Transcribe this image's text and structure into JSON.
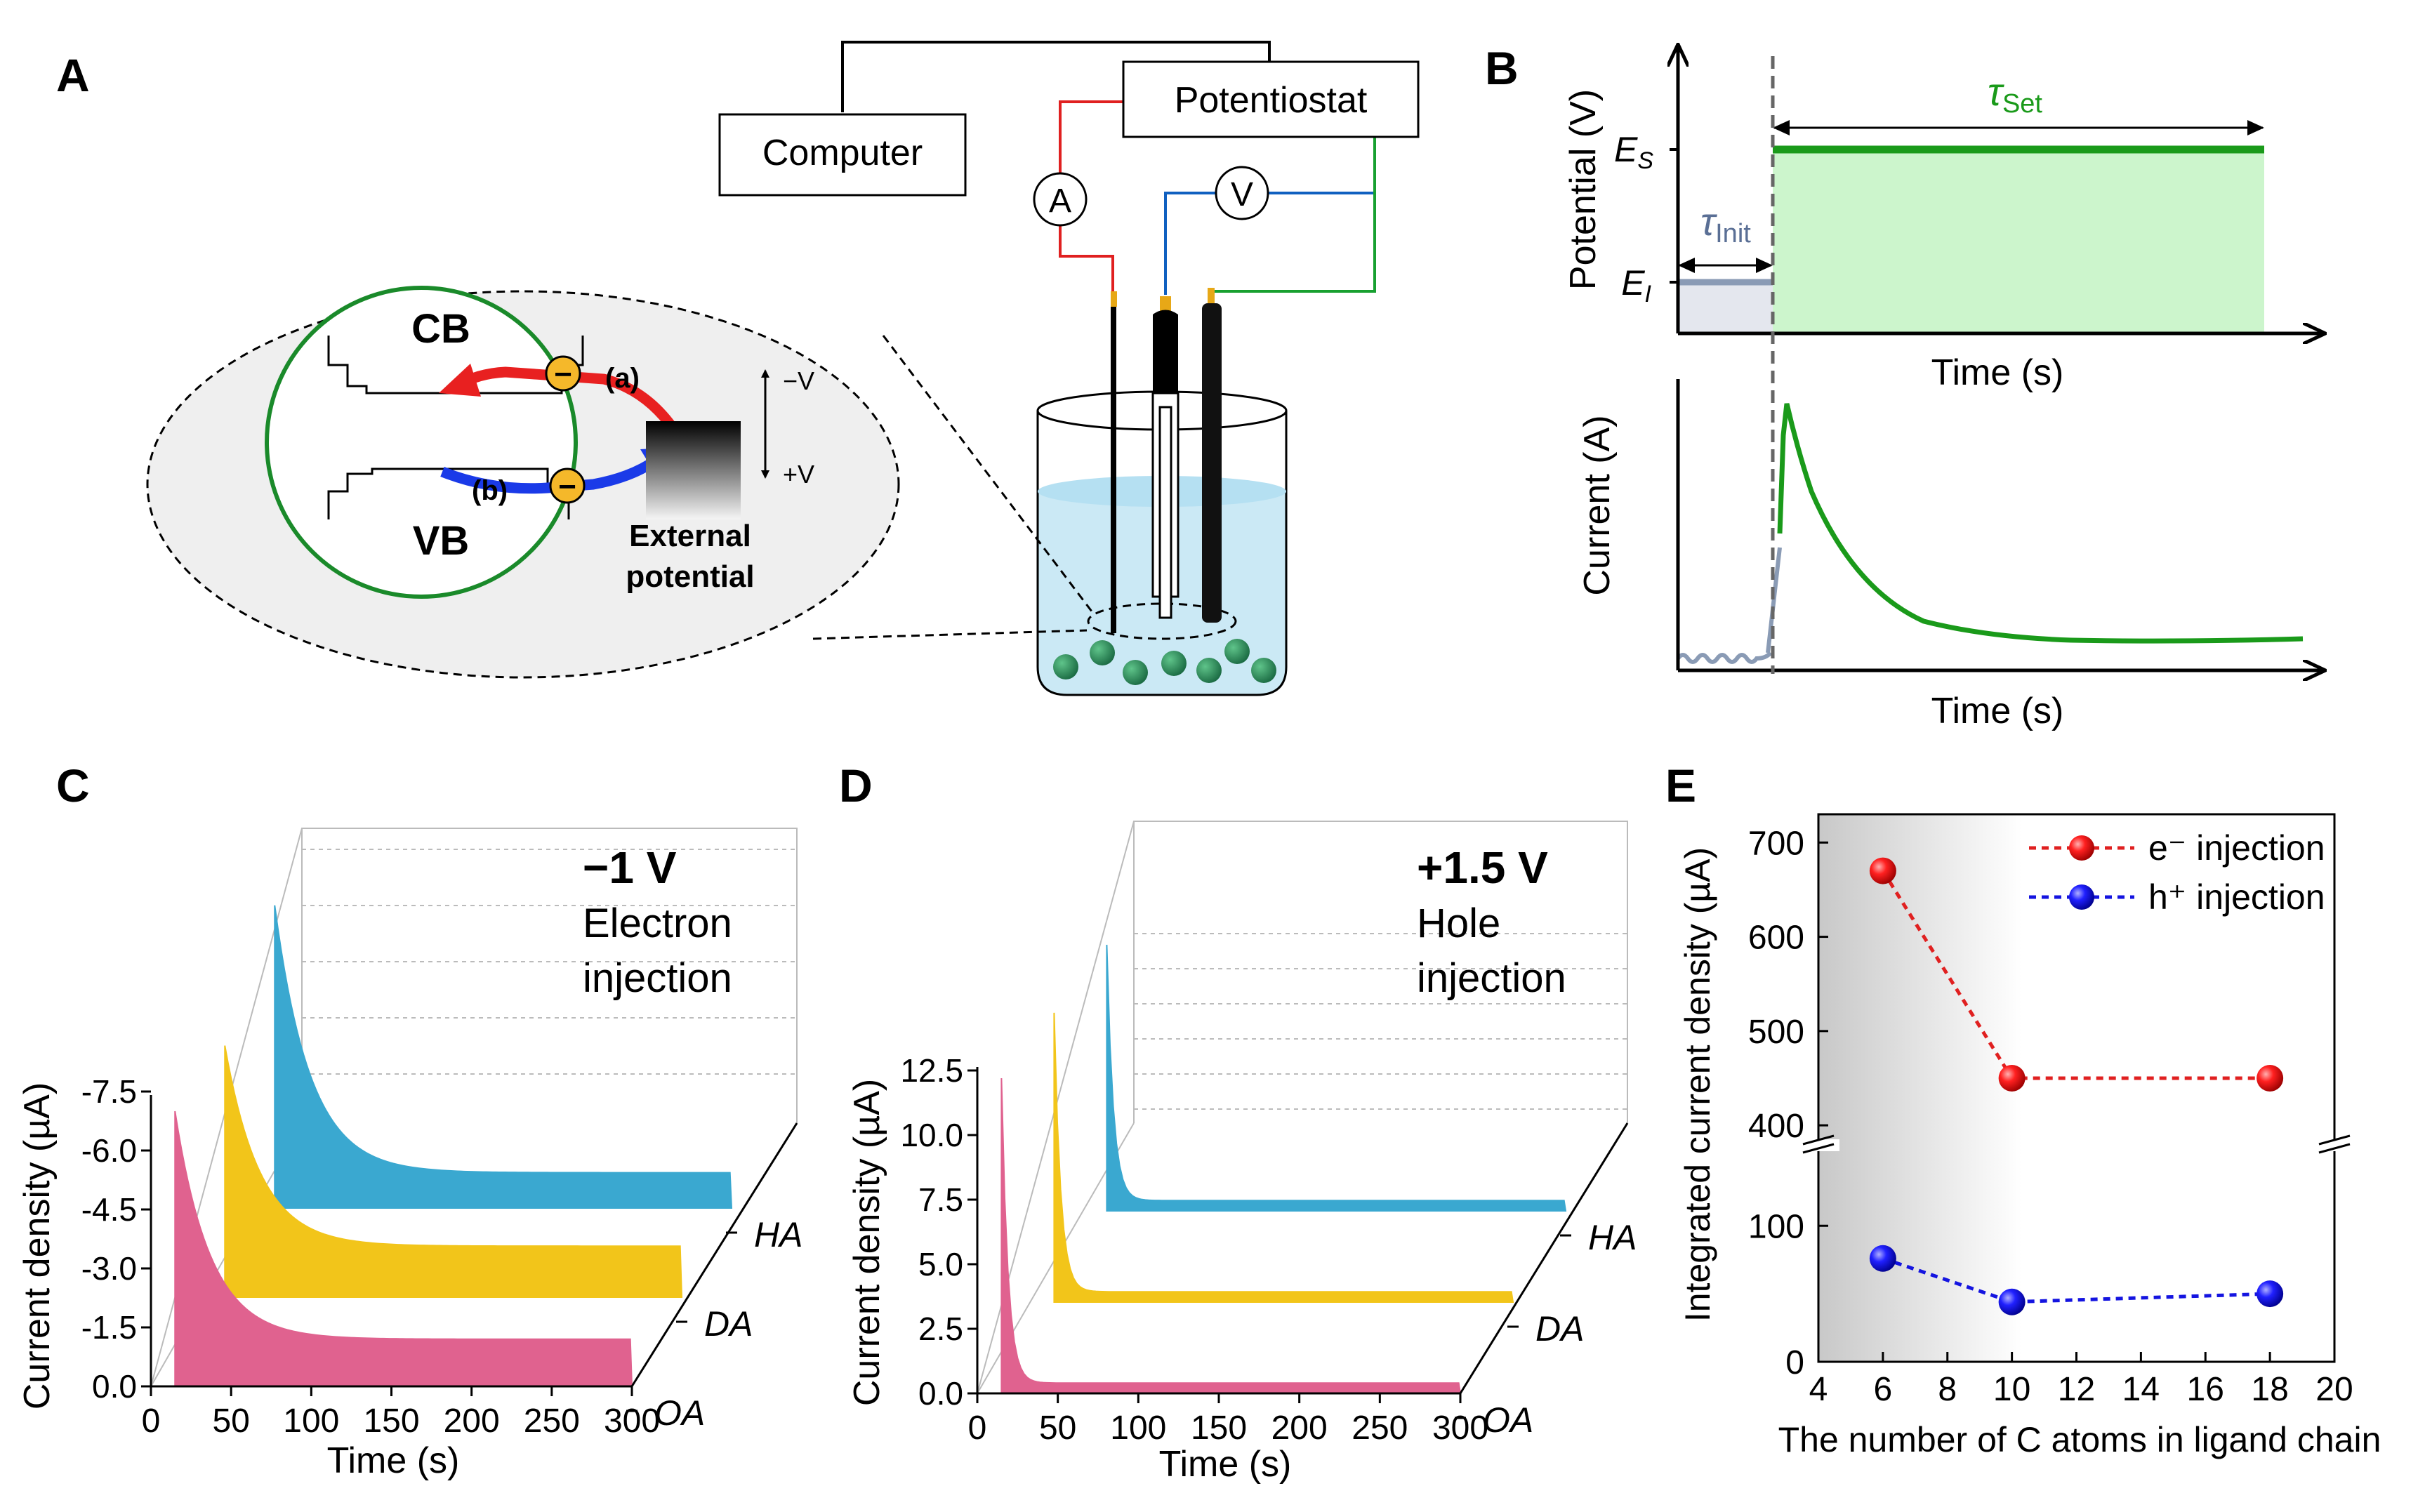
{
  "panel_labels": {
    "a": "A",
    "b": "B",
    "c": "C",
    "d": "D",
    "e": "E"
  },
  "setup": {
    "computer": "Computer",
    "potentiostat": "Potentiostat",
    "ammeter": "A",
    "voltmeter": "V",
    "cb": "CB",
    "vb": "VB",
    "path_a": "(a)",
    "path_b": "(b)",
    "minus_v": "−V",
    "plus_v": "+V",
    "ext1": "External",
    "ext2": "potential",
    "charge": "−"
  },
  "schematic": {
    "potential_ylabel": "Potential (V)",
    "current_ylabel": "Current (A)",
    "xlabel_top": "Time (s)",
    "xlabel_bottom": "Time (s)",
    "es": "E",
    "es_sub": "S",
    "ei": "E",
    "ei_sub": "I",
    "tau": "τ",
    "tau_init_sub": "Init",
    "tau_set_sub": "Set",
    "colors": {
      "green": "#1a9a1a",
      "fill_green": "#ccf5cc",
      "gray": "#8a9bb5",
      "fill_gray": "#e4e7ee"
    }
  },
  "chart_data": [
    {
      "panel": "C",
      "type": "area",
      "title_line1": "−1 V",
      "title_line2": "Electron",
      "title_line3": "injection",
      "xlabel": "Time (s)",
      "ylabel": "Current density (µA)",
      "xlim": [
        0,
        300
      ],
      "x_ticks": [
        "0",
        "50",
        "100",
        "150",
        "200",
        "250",
        "300"
      ],
      "y_ticks": [
        "0.0",
        "-1.5",
        "-3.0",
        "-4.5",
        "-6.0",
        "-7.5"
      ],
      "series": [
        {
          "name": "OA",
          "color": "#e0628f",
          "peak": -7.0,
          "tail": -1.2
        },
        {
          "name": "DA",
          "color": "#f2c51a",
          "peak": -6.4,
          "tail": -1.3
        },
        {
          "name": "HA",
          "color": "#3aa8d0",
          "peak": -7.7,
          "tail": -0.9
        }
      ]
    },
    {
      "panel": "D",
      "type": "area",
      "title_line1": "+1.5 V",
      "title_line2": "Hole",
      "title_line3": "injection",
      "xlabel": "Time (s)",
      "ylabel": "Current density (µA)",
      "xlim": [
        0,
        300
      ],
      "x_ticks": [
        "0",
        "50",
        "100",
        "150",
        "200",
        "250",
        "300"
      ],
      "y_ticks": [
        "0.0",
        "2.5",
        "5.0",
        "7.5",
        "10.0",
        "12.5"
      ],
      "series": [
        {
          "name": "OA",
          "color": "#e0628f",
          "peak": 12.2,
          "tail": 0.4
        },
        {
          "name": "DA",
          "color": "#f2c51a",
          "peak": 11.2,
          "tail": 0.4
        },
        {
          "name": "HA",
          "color": "#3aa8d0",
          "peak": 10.3,
          "tail": 0.4
        }
      ]
    },
    {
      "panel": "E",
      "type": "scatter",
      "xlabel": "The number of C atoms in ligand chain",
      "ylabel": "Integrated current density (µA)",
      "xlim": [
        4,
        20
      ],
      "x_ticks": [
        "4",
        "6",
        "8",
        "10",
        "12",
        "14",
        "16",
        "18",
        "20"
      ],
      "y_ticks_upper": [
        "400",
        "500",
        "600",
        "700"
      ],
      "y_ticks_lower": [
        "0",
        "100"
      ],
      "series": [
        {
          "name": "e⁻ injection",
          "color": "#e02020",
          "x": [
            6,
            10,
            18
          ],
          "y": [
            670,
            450,
            450
          ]
        },
        {
          "name": "h⁺ injection",
          "color": "#1414e0",
          "x": [
            6,
            10,
            18
          ],
          "y": [
            76,
            44,
            50
          ]
        }
      ],
      "legend": "top-right"
    }
  ]
}
